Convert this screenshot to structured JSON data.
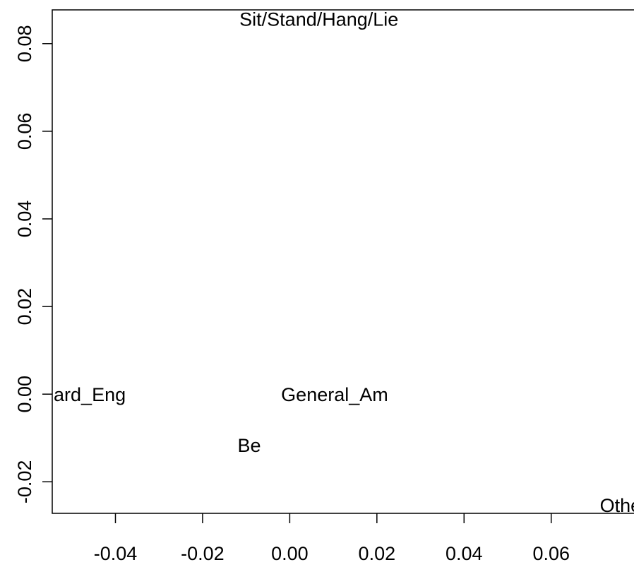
{
  "chart_data": {
    "type": "scatter",
    "title": "",
    "xlabel": "",
    "ylabel": "",
    "xlim": [
      -0.0545,
      0.079
    ],
    "ylim": [
      -0.0272,
      0.0877
    ],
    "x_ticks": [
      {
        "value": -0.04,
        "label": "-0.04"
      },
      {
        "value": -0.02,
        "label": "-0.02"
      },
      {
        "value": 0.0,
        "label": "0.00"
      },
      {
        "value": 0.02,
        "label": "0.02"
      },
      {
        "value": 0.04,
        "label": "0.04"
      },
      {
        "value": 0.06,
        "label": "0.06"
      }
    ],
    "y_ticks": [
      {
        "value": -0.02,
        "label": "-0.02"
      },
      {
        "value": 0.0,
        "label": "0.00"
      },
      {
        "value": 0.02,
        "label": "0.02"
      },
      {
        "value": 0.04,
        "label": "0.04"
      },
      {
        "value": 0.06,
        "label": "0.06"
      },
      {
        "value": 0.08,
        "label": "0.08"
      }
    ],
    "points": [
      {
        "label": "Sit/Stand/Hang/Lie",
        "x": 0.0067,
        "y": 0.0857
      },
      {
        "label": "ard_Eng",
        "x": -0.0459,
        "y": 0.0
      },
      {
        "label": "General_Am",
        "x": 0.0103,
        "y": 0.0
      },
      {
        "label": "Be",
        "x": -0.0093,
        "y": -0.0116
      },
      {
        "label": "Othe",
        "x": 0.0759,
        "y": -0.0253
      }
    ]
  }
}
